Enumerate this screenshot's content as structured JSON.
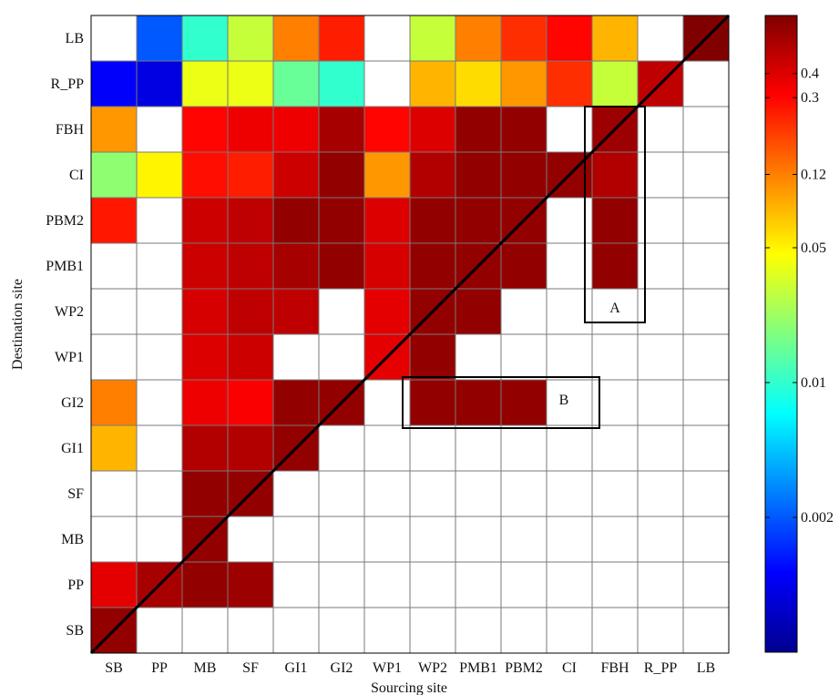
{
  "chart_data": {
    "type": "heatmap",
    "xlabel": "Sourcing site",
    "ylabel": "Destination site",
    "x_categories": [
      "SB",
      "PP",
      "MB",
      "SF",
      "GI1",
      "GI2",
      "WP1",
      "WP2",
      "PMB1",
      "PBM2",
      "CI",
      "FBH",
      "R_PP",
      "LB"
    ],
    "y_categories_top_to_bottom": [
      "LB",
      "R_PP",
      "FBH",
      "CI",
      "PBM2",
      "PMB1",
      "WP2",
      "WP1",
      "GI2",
      "GI1",
      "SF",
      "MB",
      "PP",
      "SB"
    ],
    "colorbar": {
      "scale": "log",
      "range": [
        0.0004,
        0.8
      ],
      "tick_labels": [
        "0.4",
        "0.3",
        "0.12",
        "0.05",
        "0.01",
        "0.002"
      ],
      "tick_values": [
        0.4,
        0.3,
        0.12,
        0.05,
        0.01,
        0.002
      ]
    },
    "values": [
      [
        null,
        0.002,
        0.01,
        0.03,
        0.12,
        0.25,
        null,
        0.03,
        0.12,
        0.22,
        0.3,
        0.08,
        null,
        0.8
      ],
      [
        0.001,
        0.0008,
        0.04,
        0.04,
        0.015,
        0.01,
        null,
        0.08,
        0.06,
        0.1,
        0.22,
        0.03,
        0.5,
        null
      ],
      [
        0.1,
        null,
        0.3,
        0.35,
        0.35,
        0.6,
        0.3,
        0.4,
        0.7,
        0.7,
        null,
        0.65,
        null,
        null
      ],
      [
        0.02,
        0.05,
        0.28,
        0.25,
        0.45,
        0.7,
        0.1,
        0.55,
        0.7,
        0.7,
        0.7,
        0.55,
        null,
        null
      ],
      [
        0.26,
        null,
        0.45,
        0.5,
        0.7,
        0.7,
        0.4,
        0.7,
        0.7,
        0.7,
        null,
        0.7,
        null,
        null
      ],
      [
        null,
        null,
        0.45,
        0.5,
        0.6,
        0.7,
        0.42,
        0.7,
        0.7,
        0.7,
        null,
        0.7,
        null,
        null
      ],
      [
        null,
        null,
        0.42,
        0.5,
        0.5,
        null,
        0.38,
        0.7,
        0.7,
        null,
        null,
        null,
        null,
        null
      ],
      [
        null,
        null,
        0.4,
        0.45,
        null,
        null,
        0.38,
        0.7,
        null,
        null,
        null,
        null,
        null,
        null
      ],
      [
        0.12,
        null,
        0.35,
        0.32,
        0.7,
        0.7,
        null,
        0.7,
        0.7,
        0.7,
        null,
        null,
        null,
        null
      ],
      [
        0.08,
        null,
        0.55,
        0.55,
        0.7,
        null,
        null,
        null,
        null,
        null,
        null,
        null,
        null,
        null
      ],
      [
        null,
        null,
        0.7,
        0.7,
        null,
        null,
        null,
        null,
        null,
        null,
        null,
        null,
        null,
        null
      ],
      [
        null,
        null,
        0.7,
        null,
        null,
        null,
        null,
        null,
        null,
        null,
        null,
        null,
        null,
        null
      ],
      [
        0.38,
        0.6,
        0.7,
        0.65,
        null,
        null,
        null,
        null,
        null,
        null,
        null,
        null,
        null,
        null
      ],
      [
        0.7,
        null,
        null,
        null,
        null,
        null,
        null,
        null,
        null,
        null,
        null,
        null,
        null,
        null
      ]
    ],
    "boxes": [
      {
        "label": "A",
        "x_from": "FBH",
        "x_to": "FBH",
        "y_from": "FBH",
        "y_to": "WP2"
      },
      {
        "label": "B",
        "x_from": "WP2",
        "x_to": "CI",
        "y_from": "GI2",
        "y_to": "GI2"
      }
    ],
    "diagonal_line": true,
    "grid": true
  }
}
